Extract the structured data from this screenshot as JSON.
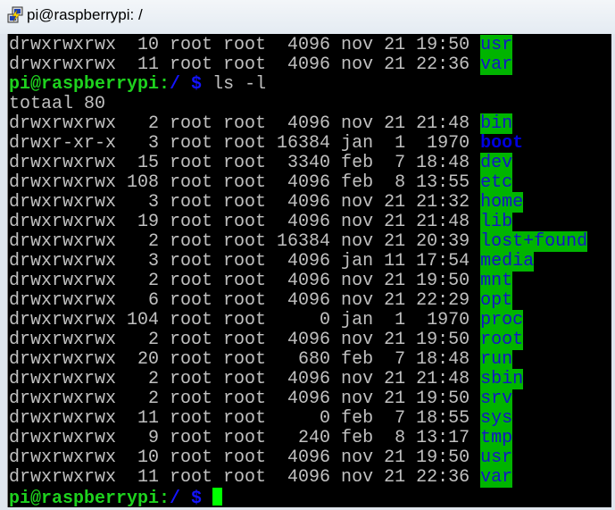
{
  "window": {
    "title": "pi@raspberrypi: /",
    "icon": "putty-terminal-icon"
  },
  "colors": {
    "background": "#000000",
    "text": "#c0c0c0",
    "prompt_user": "#1ed21e",
    "prompt_path": "#1414ff",
    "dir_bg": "#00b400",
    "dir_fg": "#1414c8",
    "cursor": "#00ff00"
  },
  "terminal": {
    "prompt_user": "pi@raspberrypi",
    "prompt_colon": ":",
    "prompt_path": "/",
    "prompt_symbol": "$",
    "command": "ls -l",
    "before": [
      {
        "perms": "drwxrwxrwx",
        "links": "10",
        "owner": "root",
        "group": "root",
        "size": "4096",
        "month": "nov",
        "day": "21",
        "time": "19:50",
        "name": "usr",
        "style": "dir"
      },
      {
        "perms": "drwxrwxrwx",
        "links": "11",
        "owner": "root",
        "group": "root",
        "size": "4096",
        "month": "nov",
        "day": "21",
        "time": "22:36",
        "name": "var",
        "style": "dir"
      }
    ],
    "total": "totaal 80",
    "entries": [
      {
        "perms": "drwxrwxrwx",
        "links": "2",
        "owner": "root",
        "group": "root",
        "size": "4096",
        "month": "nov",
        "day": "21",
        "time": "21:48",
        "name": "bin",
        "style": "dir"
      },
      {
        "perms": "drwxr-xr-x",
        "links": "3",
        "owner": "root",
        "group": "root",
        "size": "16384",
        "month": "jan",
        "day": "1",
        "time": "1970",
        "name": "boot",
        "style": "dirb"
      },
      {
        "perms": "drwxrwxrwx",
        "links": "15",
        "owner": "root",
        "group": "root",
        "size": "3340",
        "month": "feb",
        "day": "7",
        "time": "18:48",
        "name": "dev",
        "style": "dir"
      },
      {
        "perms": "drwxrwxrwx",
        "links": "108",
        "owner": "root",
        "group": "root",
        "size": "4096",
        "month": "feb",
        "day": "8",
        "time": "13:55",
        "name": "etc",
        "style": "dir"
      },
      {
        "perms": "drwxrwxrwx",
        "links": "3",
        "owner": "root",
        "group": "root",
        "size": "4096",
        "month": "nov",
        "day": "21",
        "time": "21:32",
        "name": "home",
        "style": "dir"
      },
      {
        "perms": "drwxrwxrwx",
        "links": "19",
        "owner": "root",
        "group": "root",
        "size": "4096",
        "month": "nov",
        "day": "21",
        "time": "21:48",
        "name": "lib",
        "style": "dir"
      },
      {
        "perms": "drwxrwxrwx",
        "links": "2",
        "owner": "root",
        "group": "root",
        "size": "16384",
        "month": "nov",
        "day": "21",
        "time": "20:39",
        "name": "lost+found",
        "style": "dir"
      },
      {
        "perms": "drwxrwxrwx",
        "links": "3",
        "owner": "root",
        "group": "root",
        "size": "4096",
        "month": "jan",
        "day": "11",
        "time": "17:54",
        "name": "media",
        "style": "dir"
      },
      {
        "perms": "drwxrwxrwx",
        "links": "2",
        "owner": "root",
        "group": "root",
        "size": "4096",
        "month": "nov",
        "day": "21",
        "time": "19:50",
        "name": "mnt",
        "style": "dir"
      },
      {
        "perms": "drwxrwxrwx",
        "links": "6",
        "owner": "root",
        "group": "root",
        "size": "4096",
        "month": "nov",
        "day": "21",
        "time": "22:29",
        "name": "opt",
        "style": "dir"
      },
      {
        "perms": "drwxrwxrwx",
        "links": "104",
        "owner": "root",
        "group": "root",
        "size": "0",
        "month": "jan",
        "day": "1",
        "time": "1970",
        "name": "proc",
        "style": "dir"
      },
      {
        "perms": "drwxrwxrwx",
        "links": "2",
        "owner": "root",
        "group": "root",
        "size": "4096",
        "month": "nov",
        "day": "21",
        "time": "19:50",
        "name": "root",
        "style": "dir"
      },
      {
        "perms": "drwxrwxrwx",
        "links": "20",
        "owner": "root",
        "group": "root",
        "size": "680",
        "month": "feb",
        "day": "7",
        "time": "18:48",
        "name": "run",
        "style": "dir"
      },
      {
        "perms": "drwxrwxrwx",
        "links": "2",
        "owner": "root",
        "group": "root",
        "size": "4096",
        "month": "nov",
        "day": "21",
        "time": "21:48",
        "name": "sbin",
        "style": "dir"
      },
      {
        "perms": "drwxrwxrwx",
        "links": "2",
        "owner": "root",
        "group": "root",
        "size": "4096",
        "month": "nov",
        "day": "21",
        "time": "19:50",
        "name": "srv",
        "style": "dir"
      },
      {
        "perms": "drwxrwxrwx",
        "links": "11",
        "owner": "root",
        "group": "root",
        "size": "0",
        "month": "feb",
        "day": "7",
        "time": "18:55",
        "name": "sys",
        "style": "dir"
      },
      {
        "perms": "drwxrwxrwx",
        "links": "9",
        "owner": "root",
        "group": "root",
        "size": "240",
        "month": "feb",
        "day": "8",
        "time": "13:17",
        "name": "tmp",
        "style": "dir"
      },
      {
        "perms": "drwxrwxrwx",
        "links": "10",
        "owner": "root",
        "group": "root",
        "size": "4096",
        "month": "nov",
        "day": "21",
        "time": "19:50",
        "name": "usr",
        "style": "dir"
      },
      {
        "perms": "drwxrwxrwx",
        "links": "11",
        "owner": "root",
        "group": "root",
        "size": "4096",
        "month": "nov",
        "day": "21",
        "time": "22:36",
        "name": "var",
        "style": "dir"
      }
    ]
  }
}
